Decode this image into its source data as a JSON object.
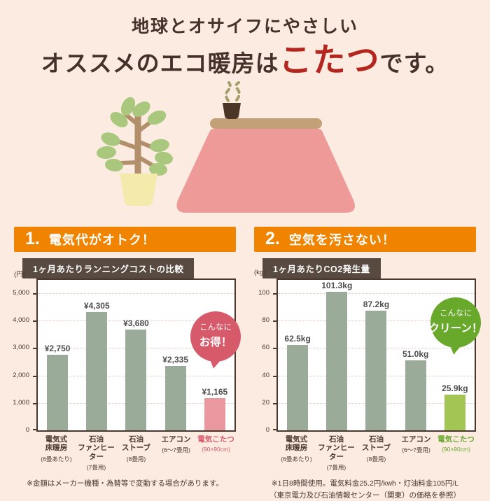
{
  "header": {
    "line1": "地球とオサイフにやさしい",
    "line2_prefix": "オススメのエコ暖房は",
    "line2_highlight": "こたつ",
    "line2_suffix": "です。"
  },
  "illustration": {
    "elements": [
      "potted-plant",
      "kotatsu-table",
      "teacup",
      "steam"
    ]
  },
  "colors": {
    "background": "#fcebe1",
    "accent_orange": "#f08300",
    "title_box_brown": "#594a41",
    "heading_brown": "#46312a",
    "heading_red": "#b3251d",
    "bar_default": "#9aab99",
    "bar_highlight_cost": "#e9989f",
    "bar_highlight_co2": "#a3c553",
    "badge_pink": "#d75a6b",
    "badge_green": "#68a82b"
  },
  "sections": [
    {
      "number": "1.",
      "banner": "電気代がオトク！",
      "badge": {
        "line1": "こんなに",
        "line2": "お得！",
        "color": "#d75a6b"
      },
      "footnote_lines": [
        "※金額はメーカー機種・為替等で変動する場合があります。"
      ]
    },
    {
      "number": "2.",
      "banner": "空気を汚さない！",
      "badge": {
        "line1": "こんなに",
        "line2": "クリーン！",
        "color": "#68a82b"
      },
      "footnote_lines": [
        "※1日8時間使用。電気料金25.2円/kwh・灯油料金105円/L",
        "（東京電力及び石油情報センター（関東）の価格を参照）"
      ]
    }
  ],
  "chart_data": [
    {
      "type": "bar",
      "title": "1ヶ月あたりランニングコストの比較",
      "ylabel": "(円)",
      "xlabel": "",
      "ylim": [
        0,
        5500
      ],
      "grid": true,
      "legend": false,
      "yticks": [
        0,
        1000,
        2000,
        3000,
        4000,
        5000
      ],
      "ytick_labels": [
        "0",
        "1,000",
        "2,000",
        "3,000",
        "4,000",
        "5,000"
      ],
      "categories": [
        [
          "電気式",
          "床暖房"
        ],
        [
          "石油",
          "ファンヒーター"
        ],
        [
          "石油",
          "ストーブ"
        ],
        [
          "エアコン"
        ],
        [
          "電気こたつ"
        ]
      ],
      "category_sublabels": [
        "(6畳あたり)",
        "(7畳用)",
        "(8畳用)",
        "(6〜7畳用)",
        "(90×90cm)"
      ],
      "category_colors": [
        "#4a372e",
        "#4a372e",
        "#4a372e",
        "#4a372e",
        "#d75a6b"
      ],
      "values": [
        2750,
        4305,
        3680,
        2335,
        1165
      ],
      "value_labels": [
        "¥2,750",
        "¥4,305",
        "¥3,680",
        "¥2,335",
        "¥1,165"
      ],
      "bar_colors": [
        "#9aab99",
        "#9aab99",
        "#9aab99",
        "#9aab99",
        "#e9989f"
      ]
    },
    {
      "type": "bar",
      "title": "1ヶ月あたりCO2発生量",
      "ylabel": "(kg)",
      "xlabel": "",
      "ylim": [
        0,
        110
      ],
      "grid": true,
      "legend": false,
      "yticks": [
        0,
        20,
        40,
        60,
        80,
        100
      ],
      "ytick_labels": [
        "0",
        "20",
        "40",
        "60",
        "80",
        "100"
      ],
      "categories": [
        [
          "電気式",
          "床暖房"
        ],
        [
          "石油",
          "ファンヒーター"
        ],
        [
          "石油",
          "ストーブ"
        ],
        [
          "エアコン"
        ],
        [
          "電気こたつ"
        ]
      ],
      "category_sublabels": [
        "(6畳あたり)",
        "(7畳用)",
        "(8畳用)",
        "(6〜7畳用)",
        "(90×90cm)"
      ],
      "category_colors": [
        "#4a372e",
        "#4a372e",
        "#4a372e",
        "#4a372e",
        "#68a82b"
      ],
      "values": [
        62.5,
        101.3,
        87.2,
        51.0,
        25.9
      ],
      "value_labels": [
        "62.5kg",
        "101.3kg",
        "87.2kg",
        "51.0kg",
        "25.9kg"
      ],
      "bar_colors": [
        "#9aab99",
        "#9aab99",
        "#9aab99",
        "#9aab99",
        "#a3c553"
      ]
    }
  ]
}
